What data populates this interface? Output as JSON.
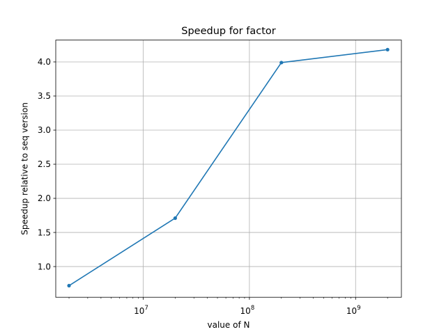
{
  "chart_data": {
    "type": "line",
    "title": "Speedup for factor",
    "xlabel": "value of N",
    "ylabel": "Speedup relative to seq version",
    "x_scale": "log",
    "xlim": [
      1500000,
      2700000000
    ],
    "ylim": [
      0.55,
      4.32
    ],
    "x_ticks": [
      {
        "value": 10000000,
        "base": "10",
        "exp": "7"
      },
      {
        "value": 100000000,
        "base": "10",
        "exp": "8"
      },
      {
        "value": 1000000000,
        "base": "10",
        "exp": "9"
      }
    ],
    "y_ticks": [
      1.0,
      1.5,
      2.0,
      2.5,
      3.0,
      3.5,
      4.0
    ],
    "y_tick_labels": [
      "1.0",
      "1.5",
      "2.0",
      "2.5",
      "3.0",
      "3.5",
      "4.0"
    ],
    "grid": true,
    "series": [
      {
        "color": "#1f77b4",
        "marker": "circle",
        "x": [
          2000000,
          20000000,
          200000000,
          2000000000
        ],
        "y": [
          0.72,
          1.71,
          3.99,
          4.18
        ]
      }
    ]
  }
}
